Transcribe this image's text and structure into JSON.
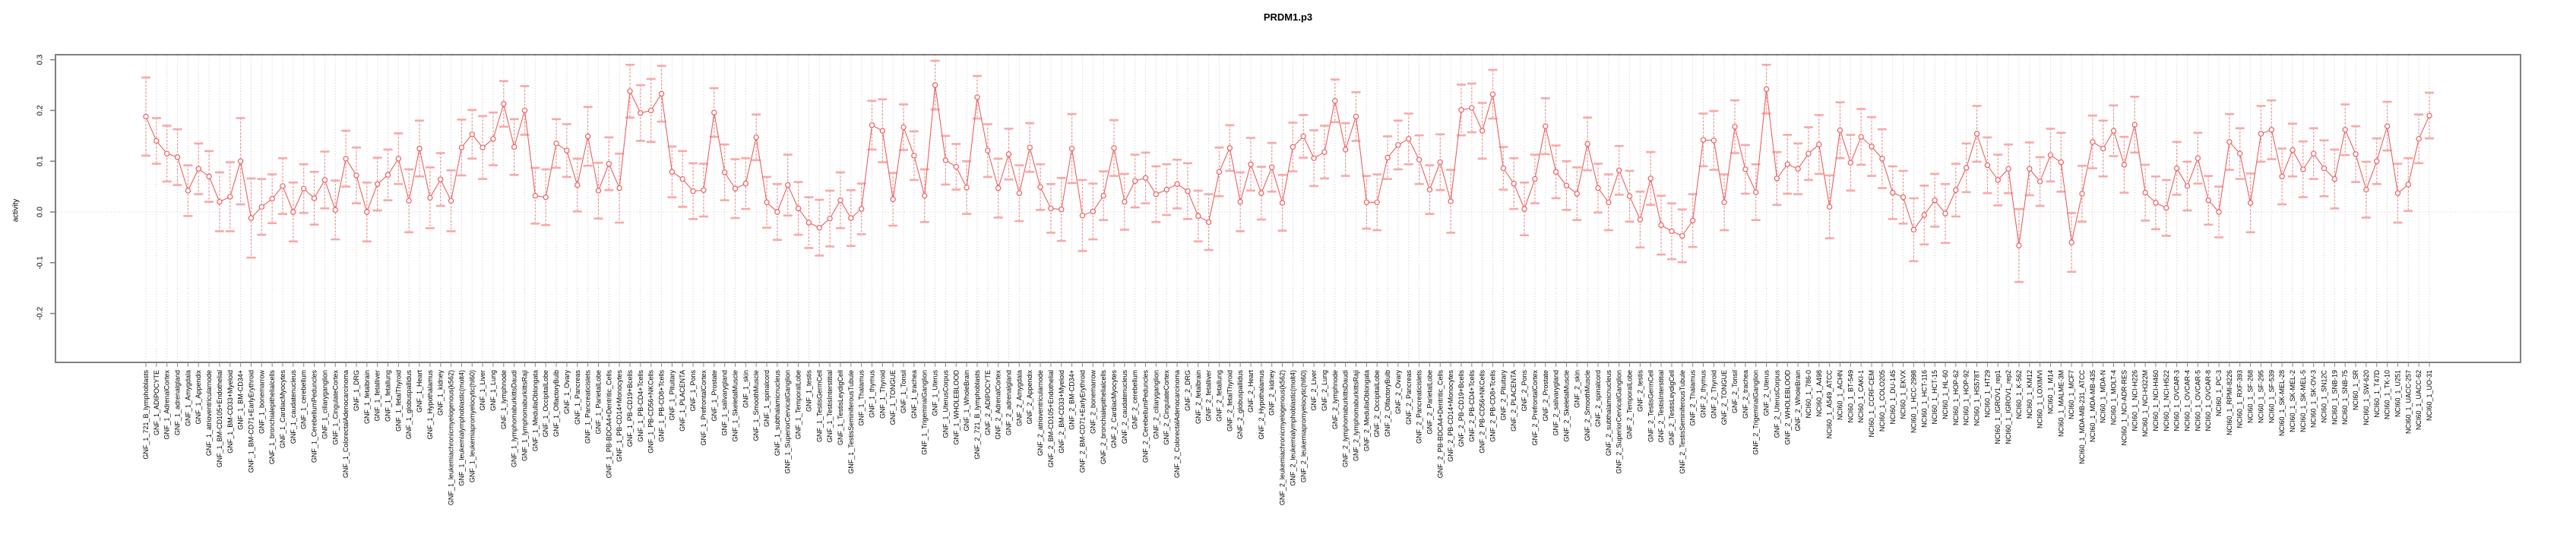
{
  "title": "PRDM1.p3",
  "chart_data": {
    "type": "line",
    "title": "PRDM1.p3",
    "xlabel": "",
    "ylabel": "activity",
    "ylim": [
      -0.3,
      0.31
    ],
    "ytick_labels": [
      "0.3",
      "0.2",
      "0.1",
      "0.0",
      "-0.1",
      "-0.2"
    ],
    "ytick_values": [
      0.3,
      0.2,
      0.1,
      0.0,
      -0.1,
      -0.2
    ],
    "grid": "vertical dotted line per sample; horizontal dotted line at 0",
    "legend_position": "none",
    "point_style": "open circle with error bars",
    "colors": {
      "line": "#ee5f5f",
      "point_stroke": "#ee5f5f",
      "error_stem": "#f08080",
      "error_cap": "#f8a8a8",
      "gridline": "#c9c9c9",
      "axis_box": "#7f7f7f",
      "tick": "#8a8a8a",
      "text": "#000000",
      "background": "#ffffff"
    },
    "samples_format": [
      "label",
      "value",
      "err_half_width"
    ],
    "samples": [
      [
        "GNF_1_721_B_lymphoblasts",
        0.188,
        0.077
      ],
      [
        "GNF_1_ADIPOCYTE",
        0.14,
        0.045
      ],
      [
        "GNF_1_AdrenalCortex",
        0.115,
        0.055
      ],
      [
        "GNF_1_adrenalgland",
        0.108,
        0.055
      ],
      [
        "GNF_1_Amygdala",
        0.042,
        0.05
      ],
      [
        "GNF_1_Appendix",
        0.085,
        0.05
      ],
      [
        "GNF_1_atrioventricularnode",
        0.07,
        0.05
      ],
      [
        "GNF_1_BM-CD105+Endothelial",
        0.02,
        0.058
      ],
      [
        "GNF_1_BM-CD33+Myeloid",
        0.03,
        0.068
      ],
      [
        "GNF_1_BM-CD34+",
        0.1,
        0.085
      ],
      [
        "GNF_1_BM-CD71+EarlyErythroid",
        -0.012,
        0.078
      ],
      [
        "GNF_1_bonemarrow",
        0.01,
        0.055
      ],
      [
        "GNF_1_bronchialepithelialcells",
        0.026,
        0.048
      ],
      [
        "GNF_1_CardiacMyocytes",
        0.051,
        0.055
      ],
      [
        "GNF_1_caudatenucleus",
        0.0,
        0.058
      ],
      [
        "GNF_1_cerebellum",
        0.046,
        0.048
      ],
      [
        "GNF_1_CerebellumPeduncles",
        0.027,
        0.052
      ],
      [
        "GNF_1_ciliaryganglion",
        0.063,
        0.056
      ],
      [
        "GNF_1_CingulateCortex",
        0.004,
        0.058
      ],
      [
        "GNF_1_ColorectalAdenocarcinoma",
        0.105,
        0.055
      ],
      [
        "GNF_1_DRG",
        0.072,
        0.055
      ],
      [
        "GNF_1_fetalbrain",
        0.0,
        0.058
      ],
      [
        "GNF_1_fetalliver",
        0.055,
        0.052
      ],
      [
        "GNF_1_fetallung",
        0.073,
        0.05
      ],
      [
        "GNF_1_fetalThyroid",
        0.105,
        0.05
      ],
      [
        "GNF_1_globuspallidus",
        0.022,
        0.062
      ],
      [
        "GNF_1_Heart",
        0.125,
        0.055
      ],
      [
        "GNF_1_Hypothalamus",
        0.028,
        0.06
      ],
      [
        "GNF_1_kidney",
        0.064,
        0.052
      ],
      [
        "GNF_1_leukemiachronicmyelogenous(k562)",
        0.022,
        0.06
      ],
      [
        "GNF_1_leukemialymphoblastic(molt4)",
        0.127,
        0.055
      ],
      [
        "GNF_1_leukemiapromyelocytic(hl60)",
        0.153,
        0.048
      ],
      [
        "GNF_1_Liver",
        0.127,
        0.062
      ],
      [
        "GNF_1_Lung",
        0.144,
        0.052
      ],
      [
        "GNF_1_lymphnode",
        0.213,
        0.045
      ],
      [
        "GNF_1_lymphomaburkittsDaudi",
        0.128,
        0.055
      ],
      [
        "GNF_1_lymphomaburkittsRaji",
        0.2,
        0.048
      ],
      [
        "GNF_1_MedullaOblongata",
        0.032,
        0.055
      ],
      [
        "GNF_1_OccipitalLobe",
        0.029,
        0.055
      ],
      [
        "GNF_1_OlfactoryBulb",
        0.135,
        0.048
      ],
      [
        "GNF_1_Ovary",
        0.121,
        0.052
      ],
      [
        "GNF_1_Pancreas",
        0.053,
        0.052
      ],
      [
        "GNF_1_Pancreaticislets",
        0.149,
        0.058
      ],
      [
        "GNF_1_ParietalLobe",
        0.042,
        0.055
      ],
      [
        "GNF_1_PB-BDCA4+Dentritic_Cells",
        0.095,
        0.052
      ],
      [
        "GNF_1_PB-CD14+Monocytes",
        0.047,
        0.068
      ],
      [
        "GNF_1_PB-CD19+Bcells",
        0.238,
        0.052
      ],
      [
        "GNF_1_PB-CD4+Tcells",
        0.195,
        0.055
      ],
      [
        "GNF_1_PB-CD56+NKCells",
        0.2,
        0.062
      ],
      [
        "GNF_1_PB-CD8+Tcells",
        0.233,
        0.055
      ],
      [
        "GNF_1_Pituitary",
        0.079,
        0.05
      ],
      [
        "GNF_1_PLACENTA",
        0.065,
        0.055
      ],
      [
        "GNF_1_Pons",
        0.041,
        0.055
      ],
      [
        "GNF_1_PrefrontalCortex",
        0.043,
        0.052
      ],
      [
        "GNF_1_Prostate",
        0.196,
        0.048
      ],
      [
        "GNF_1_salivarygland",
        0.078,
        0.055
      ],
      [
        "GNF_1_SkeletalMuscle",
        0.046,
        0.058
      ],
      [
        "GNF_1_skin",
        0.056,
        0.05
      ],
      [
        "GNF_1_SmoothMuscle",
        0.147,
        0.045
      ],
      [
        "GNF_1_spinalcord",
        0.019,
        0.05
      ],
      [
        "GNF_1_subthalamicnucleus",
        0.0,
        0.055
      ],
      [
        "GNF_1_SuperiorCervicalGanglion",
        0.053,
        0.06
      ],
      [
        "GNF_1_TemporalLobe",
        0.007,
        0.052
      ],
      [
        "GNF_1_testis",
        -0.021,
        0.05
      ],
      [
        "GNF_1_TestisGermCell",
        -0.031,
        0.055
      ],
      [
        "GNF_1_TestisInterstitial",
        -0.013,
        0.055
      ],
      [
        "GNF_1_TestisLeydigCell",
        0.023,
        0.055
      ],
      [
        "GNF_1_TestisSeminiferousTubule",
        -0.012,
        0.055
      ],
      [
        "GNF_1_Thalamus",
        0.006,
        0.05
      ],
      [
        "GNF_1_thymus",
        0.171,
        0.048
      ],
      [
        "GNF_1_Thyroid",
        0.16,
        0.062
      ],
      [
        "GNF_1_TONGUE",
        0.025,
        0.052
      ],
      [
        "GNF_1_Tonsil",
        0.167,
        0.045
      ],
      [
        "GNF_1_trachea",
        0.111,
        0.048
      ],
      [
        "GNF_1_TrigeminalGanglion",
        0.032,
        0.052
      ],
      [
        "GNF_1_Uterus",
        0.25,
        0.048
      ],
      [
        "GNF_1_UterusCorpus",
        0.102,
        0.048
      ],
      [
        "GNF_1_WHOLEBLOOD",
        0.089,
        0.045
      ],
      [
        "GNF_1_WholeBrain",
        0.048,
        0.052
      ],
      [
        "GNF_2_721_B_lymphoblasts",
        0.226,
        0.042
      ],
      [
        "GNF_2_ADIPOCYTE",
        0.121,
        0.052
      ],
      [
        "GNF_2_AdrenalCortex",
        0.047,
        0.058
      ],
      [
        "GNF_2_adrenalgland",
        0.114,
        0.05
      ],
      [
        "GNF_2_Amygdala",
        0.037,
        0.055
      ],
      [
        "GNF_2_Appendix",
        0.127,
        0.048
      ],
      [
        "GNF_2_atrioventricularnode",
        0.049,
        0.045
      ],
      [
        "GNF_2_BM-CD105+Endothelial",
        0.007,
        0.048
      ],
      [
        "GNF_2_BM-CD33+Myeloid",
        0.005,
        0.062
      ],
      [
        "GNF_2_BM-CD34+",
        0.125,
        0.068
      ],
      [
        "GNF_2_BM-CD71+EarlyErythroid",
        -0.007,
        0.07
      ],
      [
        "GNF_2_bonemarrow",
        0.001,
        0.055
      ],
      [
        "GNF_2_bronchialepithelialcells",
        0.032,
        0.048
      ],
      [
        "GNF_2_CardiacMyocytes",
        0.126,
        0.055
      ],
      [
        "GNF_2_caudatenucleus",
        0.02,
        0.055
      ],
      [
        "GNF_2_cerebellum",
        0.061,
        0.052
      ],
      [
        "GNF_2_CerebellumPeduncles",
        0.067,
        0.05
      ],
      [
        "GNF_2_ciliaryganglion",
        0.035,
        0.055
      ],
      [
        "GNF_2_CingulateCortex",
        0.044,
        0.05
      ],
      [
        "GNF_2_ColorectalAdenocarcinoma",
        0.055,
        0.048
      ],
      [
        "GNF_2_DRG",
        0.041,
        0.055
      ],
      [
        "GNF_2_fetalbrain",
        -0.008,
        0.05
      ],
      [
        "GNF_2_fetalliver",
        -0.02,
        0.055
      ],
      [
        "GNF_2_fetallung",
        0.079,
        0.048
      ],
      [
        "GNF_2_fetalThyroid",
        0.126,
        0.045
      ],
      [
        "GNF_2_globuspallidus",
        0.02,
        0.058
      ],
      [
        "GNF_2_Heart",
        0.094,
        0.052
      ],
      [
        "GNF_2_Hypothalamus",
        0.037,
        0.052
      ],
      [
        "GNF_2_kidney",
        0.088,
        0.048
      ],
      [
        "GNF_2_leukemiachronicmyelogenous(k562)",
        0.018,
        0.055
      ],
      [
        "GNF_2_leukemialymphoblastic(molt4)",
        0.128,
        0.048
      ],
      [
        "GNF_2_leukemiapromyelocytic(hl60)",
        0.149,
        0.042
      ],
      [
        "GNF_2_Liver",
        0.106,
        0.055
      ],
      [
        "GNF_2_Lung",
        0.118,
        0.052
      ],
      [
        "GNF_2_lymphnode",
        0.219,
        0.042
      ],
      [
        "GNF_2_lymphomaburkittsDaudi",
        0.123,
        0.052
      ],
      [
        "GNF_2_lymphomaburkittsRaji",
        0.188,
        0.048
      ],
      [
        "GNF_2_MedullaOblongata",
        0.019,
        0.052
      ],
      [
        "GNF_2_OccipitalLobe",
        0.019,
        0.055
      ],
      [
        "GNF_2_OlfactoryBulb",
        0.107,
        0.042
      ],
      [
        "GNF_2_Ovary",
        0.132,
        0.048
      ],
      [
        "GNF_2_Pancreas",
        0.144,
        0.05
      ],
      [
        "GNF_2_Pancreaticislets",
        0.103,
        0.048
      ],
      [
        "GNF_2_ParietalLobe",
        0.044,
        0.048
      ],
      [
        "GNF_2_PB-BDCA4+Dentritic_Cells",
        0.098,
        0.055
      ],
      [
        "GNF_2_PB-CD14+Monocytes",
        0.021,
        0.062
      ],
      [
        "GNF_2_PB-CD19+Bcells",
        0.201,
        0.05
      ],
      [
        "GNF_2_PB-CD4+Tcells",
        0.205,
        0.048
      ],
      [
        "GNF_2_PB-CD56+NKCells",
        0.16,
        0.055
      ],
      [
        "GNF_2_PB-CD8+Tcells",
        0.232,
        0.048
      ],
      [
        "GNF_2_Pituitary",
        0.086,
        0.042
      ],
      [
        "GNF_2_PLACENTA",
        0.056,
        0.05
      ],
      [
        "GNF_2_Pons",
        0.006,
        0.052
      ],
      [
        "GNF_2_PrefrontalCortex",
        0.065,
        0.048
      ],
      [
        "GNF_2_Prostate",
        0.169,
        0.055
      ],
      [
        "GNF_2_salivarygland",
        0.079,
        0.052
      ],
      [
        "GNF_2_SkeletalMuscle",
        0.052,
        0.048
      ],
      [
        "GNF_2_skin",
        0.036,
        0.052
      ],
      [
        "GNF_2_SmoothMuscle",
        0.134,
        0.052
      ],
      [
        "GNF_2_spinalcord",
        0.047,
        0.048
      ],
      [
        "GNF_2_subthalamicnucleus",
        0.019,
        0.055
      ],
      [
        "GNF_2_SuperiorCervicalGanglion",
        0.082,
        0.048
      ],
      [
        "GNF_2_TemporalLobe",
        0.031,
        0.05
      ],
      [
        "GNF_2_testis",
        -0.015,
        0.055
      ],
      [
        "GNF_2_TestisGermCell",
        0.066,
        0.052
      ],
      [
        "GNF_2_TestisInterstitial",
        -0.026,
        0.058
      ],
      [
        "GNF_2_TestisLeydigCell",
        -0.038,
        0.055
      ],
      [
        "GNF_2_TestisSeminiferousTubule",
        -0.047,
        0.052
      ],
      [
        "GNF_2_Thalamus",
        -0.017,
        0.052
      ],
      [
        "GNF_2_thymus",
        0.142,
        0.052
      ],
      [
        "GNF_2_Thyroid",
        0.141,
        0.058
      ],
      [
        "GNF_2_TONGUE",
        0.019,
        0.055
      ],
      [
        "GNF_2_Tonsil",
        0.168,
        0.052
      ],
      [
        "GNF_2_trachea",
        0.084,
        0.048
      ],
      [
        "GNF_2_TrigeminalGanglion",
        0.039,
        0.055
      ],
      [
        "GNF_2_Uterus",
        0.242,
        0.048
      ],
      [
        "GNF_2_UterusCorpus",
        0.066,
        0.052
      ],
      [
        "GNF_2_WHOLEBLOOD",
        0.094,
        0.058
      ],
      [
        "GNF_2_WholeBrain",
        0.085,
        0.05
      ],
      [
        "NCI60_1_786-0",
        0.115,
        0.052
      ],
      [
        "NCI60_1_A498",
        0.133,
        0.058
      ],
      [
        "NCI60_1_A549_ATCC",
        0.01,
        0.062
      ],
      [
        "NCI60_1_ACHN",
        0.161,
        0.055
      ],
      [
        "NCI60_1_BT-549",
        0.097,
        0.055
      ],
      [
        "NCI60_1_CAKI-1",
        0.148,
        0.055
      ],
      [
        "NCI60_1_CCRF-CEM",
        0.129,
        0.058
      ],
      [
        "NCI60_1_COLO205",
        0.105,
        0.058
      ],
      [
        "NCI60_1_DU-145",
        0.038,
        0.052
      ],
      [
        "NCI60_1_EKVX",
        0.029,
        0.052
      ],
      [
        "NCI60_1_HCC-2998",
        -0.035,
        0.062
      ],
      [
        "NCI60_1_HCT-116",
        -0.006,
        0.058
      ],
      [
        "NCI60_1_HCT-15",
        0.023,
        0.052
      ],
      [
        "NCI60_1_HL-60",
        -0.003,
        0.058
      ],
      [
        "NCI60_1_HOP-62",
        0.043,
        0.052
      ],
      [
        "NCI60_1_HOP-92",
        0.087,
        0.048
      ],
      [
        "NCI60_1_HS578T",
        0.154,
        0.055
      ],
      [
        "NCI60_1_HT29",
        0.092,
        0.055
      ],
      [
        "NCI60_1_IGROV1_rep1",
        0.063,
        0.05
      ],
      [
        "NCI60_1_IGROV1_rep2",
        0.085,
        0.048
      ],
      [
        "NCI60_1_K-562",
        -0.066,
        0.072
      ],
      [
        "NCI60_1_KM12",
        0.085,
        0.052
      ],
      [
        "NCI60_1_LOXIMVI",
        0.06,
        0.048
      ],
      [
        "NCI60_1_M14",
        0.112,
        0.052
      ],
      [
        "NCI60_1_MALME-3M",
        0.098,
        0.058
      ],
      [
        "NCI60_1_MCF7",
        -0.06,
        0.058
      ],
      [
        "NCI60_1_MDA-MB-231_ATCC",
        0.036,
        0.055
      ],
      [
        "NCI60_1_MDA-MB-435",
        0.138,
        0.052
      ],
      [
        "NCI60_1_MDA-N",
        0.125,
        0.055
      ],
      [
        "NCI60_1_MOLT-4",
        0.16,
        0.05
      ],
      [
        "NCI60_1_NCI-ADR-RES",
        0.093,
        0.055
      ],
      [
        "NCI60_1_NCI-H226",
        0.172,
        0.055
      ],
      [
        "NCI60_1_NCI-H322M",
        0.038,
        0.055
      ],
      [
        "NCI60_1_NCI-H460",
        0.018,
        0.052
      ],
      [
        "NCI60_1_NCI-H522",
        0.008,
        0.055
      ],
      [
        "NCI60_1_OVCAR-3",
        0.086,
        0.052
      ],
      [
        "NCI60_1_OVCAR-4",
        0.051,
        0.048
      ],
      [
        "NCI60_1_OVCAR-5",
        0.106,
        0.05
      ],
      [
        "NCI60_1_OVCAR-8",
        0.023,
        0.048
      ],
      [
        "NCI60_1_PC-3",
        0.0,
        0.05
      ],
      [
        "NCI60_1_RPMI-8226",
        0.138,
        0.055
      ],
      [
        "NCI60_1_RXF-393",
        0.115,
        0.05
      ],
      [
        "NCI60_1_SF-268",
        0.018,
        0.058
      ],
      [
        "NCI60_1_SF-295",
        0.154,
        0.055
      ],
      [
        "NCI60_1_SF-539",
        0.162,
        0.058
      ],
      [
        "NCI60_1_SK-MEL-28",
        0.07,
        0.055
      ],
      [
        "NCI60_1_SK-MEL-2",
        0.122,
        0.052
      ],
      [
        "NCI60_1_SK-MEL-5",
        0.084,
        0.055
      ],
      [
        "NCI60_1_SK-OV-3",
        0.115,
        0.05
      ],
      [
        "NCI60_1_SN12C",
        0.086,
        0.055
      ],
      [
        "NCI60_1_SNB-19",
        0.065,
        0.058
      ],
      [
        "NCI60_1_SNB-75",
        0.162,
        0.05
      ],
      [
        "NCI60_1_SR",
        0.114,
        0.055
      ],
      [
        "NCI60_1_SW-620",
        0.044,
        0.055
      ],
      [
        "NCI60_1_T47D",
        0.1,
        0.045
      ],
      [
        "NCI60_1_TK-10",
        0.169,
        0.048
      ],
      [
        "NCI60_1_U251",
        0.037,
        0.058
      ],
      [
        "NCI60_1_UACC-257",
        0.054,
        0.052
      ],
      [
        "NCI60_1_UACC-62",
        0.144,
        0.048
      ],
      [
        "NCI60_1_UO-31",
        0.19,
        0.045
      ]
    ]
  }
}
